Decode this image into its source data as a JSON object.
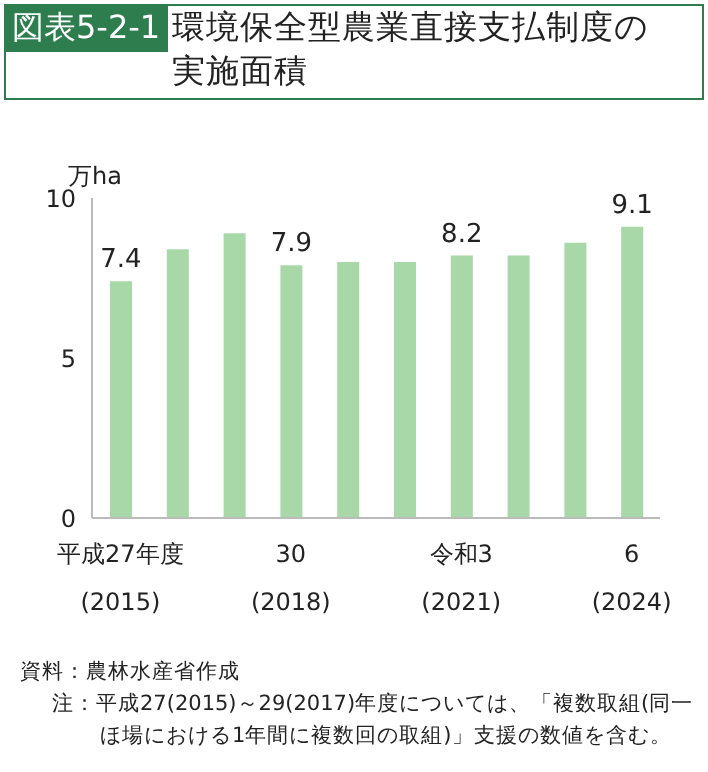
{
  "chart_data": {
    "type": "bar",
    "title": "環境保全型農業直接支払制度の実施面積",
    "ylabel": "万ha",
    "categories": [
      "平成27年度\n(2015)",
      null,
      null,
      "30\n(2018)",
      null,
      null,
      "令和3\n(2021)",
      null,
      null,
      "6\n(2024)"
    ],
    "values": [
      7.4,
      8.4,
      8.9,
      7.9,
      8.0,
      8.0,
      8.2,
      8.2,
      8.6,
      9.1
    ],
    "value_labels": [
      "7.4",
      null,
      null,
      "7.9",
      null,
      null,
      "8.2",
      null,
      null,
      "9.1"
    ],
    "color": "#a8d8a8",
    "ylim": [
      0,
      10
    ],
    "yticks": [
      0,
      5,
      10
    ],
    "grid": false,
    "legend": false,
    "annotations": [
      "図表5-2-1",
      "資料：農林水産省作成",
      "注：平成27(2015)～29(2017)年度については、「複数取組(同一ほ場における1年間に複数回の取組)」支援の数値を含む。"
    ]
  }
}
